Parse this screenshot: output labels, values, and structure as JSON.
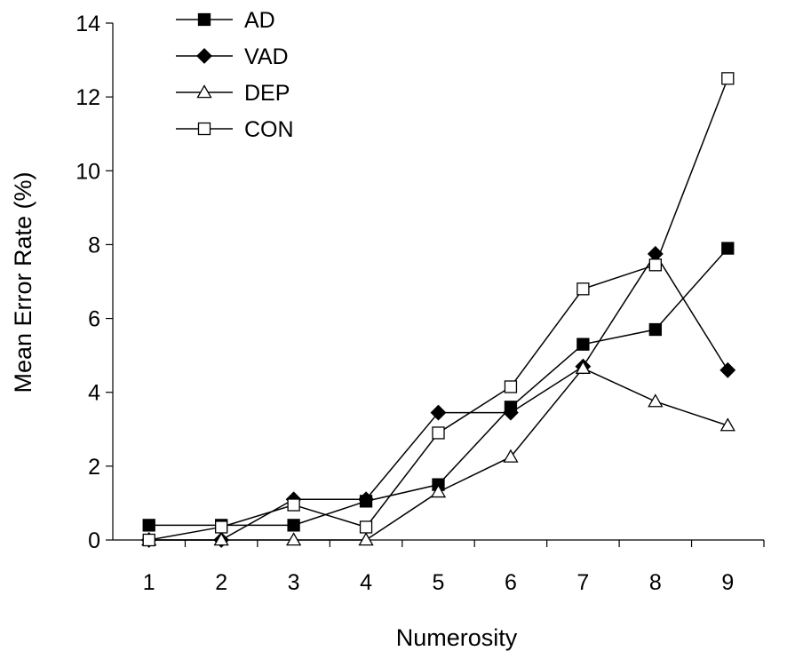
{
  "chart_data": {
    "type": "line",
    "title": "",
    "xlabel": "Numerosity",
    "ylabel": "Mean Error Rate (%)",
    "categories": [
      "1",
      "2",
      "3",
      "4",
      "5",
      "6",
      "7",
      "8",
      "9"
    ],
    "ylim": [
      0,
      14
    ],
    "yticks": [
      "0",
      "2",
      "4",
      "6",
      "8",
      "10",
      "12",
      "14"
    ],
    "grid": false,
    "legend_position": "top-left",
    "series": [
      {
        "name": "AD",
        "marker": "square-filled",
        "values": [
          0.4,
          0.4,
          0.4,
          1.05,
          1.5,
          3.6,
          5.3,
          5.7,
          7.9
        ]
      },
      {
        "name": "VAD",
        "marker": "diamond-filled",
        "values": [
          0.0,
          0.0,
          1.1,
          1.1,
          3.45,
          3.45,
          4.7,
          7.75,
          4.6
        ]
      },
      {
        "name": "DEP",
        "marker": "triangle-open",
        "values": [
          0.0,
          0.0,
          0.0,
          0.0,
          1.3,
          2.25,
          4.65,
          3.75,
          3.1
        ]
      },
      {
        "name": "CON",
        "marker": "square-open",
        "values": [
          0.0,
          0.35,
          0.95,
          0.35,
          2.9,
          4.15,
          6.8,
          7.45,
          12.5
        ]
      }
    ],
    "colors": {
      "line": "#000000",
      "marker_fill": "#000000",
      "open_fill": "#ffffff"
    }
  }
}
